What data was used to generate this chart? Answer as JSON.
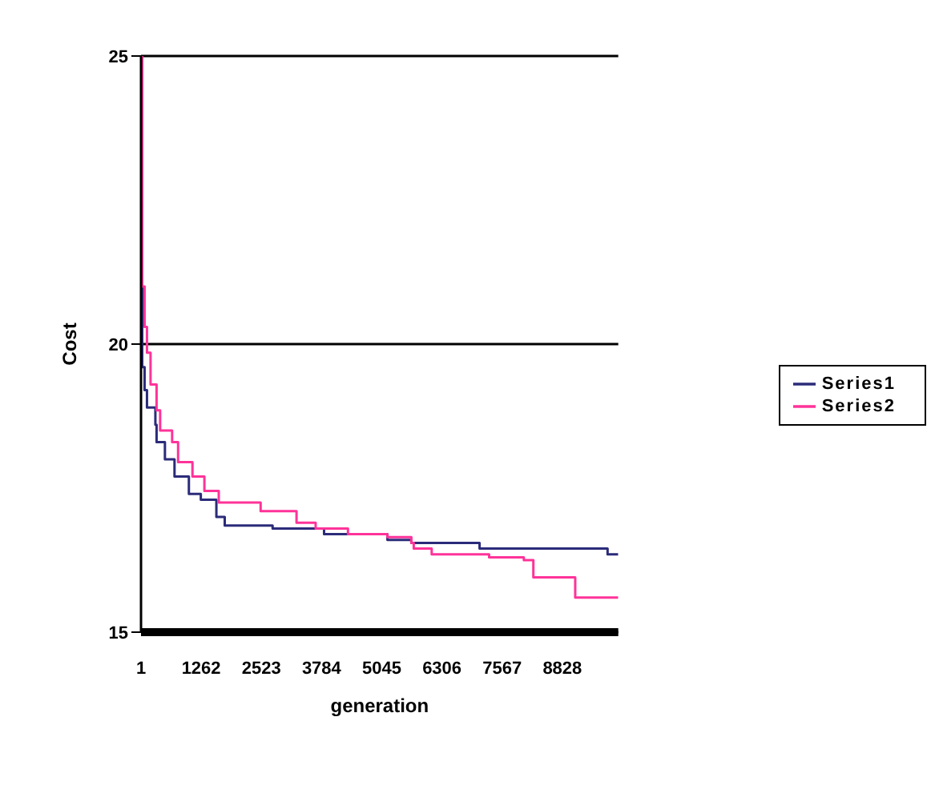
{
  "chart_data": {
    "type": "step",
    "xlabel": "generation",
    "ylabel": "Cost",
    "xlim": [
      1,
      10000
    ],
    "xticks": [
      1,
      1262,
      2523,
      3784,
      5045,
      6306,
      7567,
      8828
    ],
    "ylim": [
      15,
      25
    ],
    "yticks": [
      15,
      20,
      25
    ],
    "grid": "y",
    "legend": "right",
    "marker": "none",
    "line_style": "solid",
    "series": [
      {
        "name": "Series1",
        "color": "#2b2b7a",
        "x": [
          1,
          26,
          76,
          126,
          302,
          327,
          502,
          703,
          1004,
          1254,
          1580,
          1755,
          2758,
          3836,
          5164,
          5665,
          6342,
          7094,
          8422,
          9776,
          10000
        ],
        "values": [
          24.5,
          19.6,
          19.2,
          18.9,
          18.6,
          18.3,
          18.0,
          17.7,
          17.4,
          17.3,
          17.0,
          16.85,
          16.8,
          16.7,
          16.6,
          16.55,
          16.55,
          16.45,
          16.45,
          16.35,
          16.35
        ]
      },
      {
        "name": "Series2",
        "color": "#ff3399",
        "x": [
          1,
          26,
          76,
          126,
          201,
          327,
          402,
          653,
          778,
          1079,
          1329,
          1630,
          2507,
          3259,
          3660,
          4337,
          5164,
          5665,
          5715,
          6091,
          7294,
          8021,
          8221,
          9098,
          10000
        ],
        "values": [
          25,
          21.0,
          20.3,
          19.85,
          19.3,
          18.85,
          18.5,
          18.3,
          17.95,
          17.7,
          17.45,
          17.25,
          17.1,
          16.9,
          16.8,
          16.7,
          16.65,
          16.55,
          16.45,
          16.35,
          16.3,
          16.25,
          15.95,
          15.6,
          15.6
        ]
      }
    ]
  }
}
